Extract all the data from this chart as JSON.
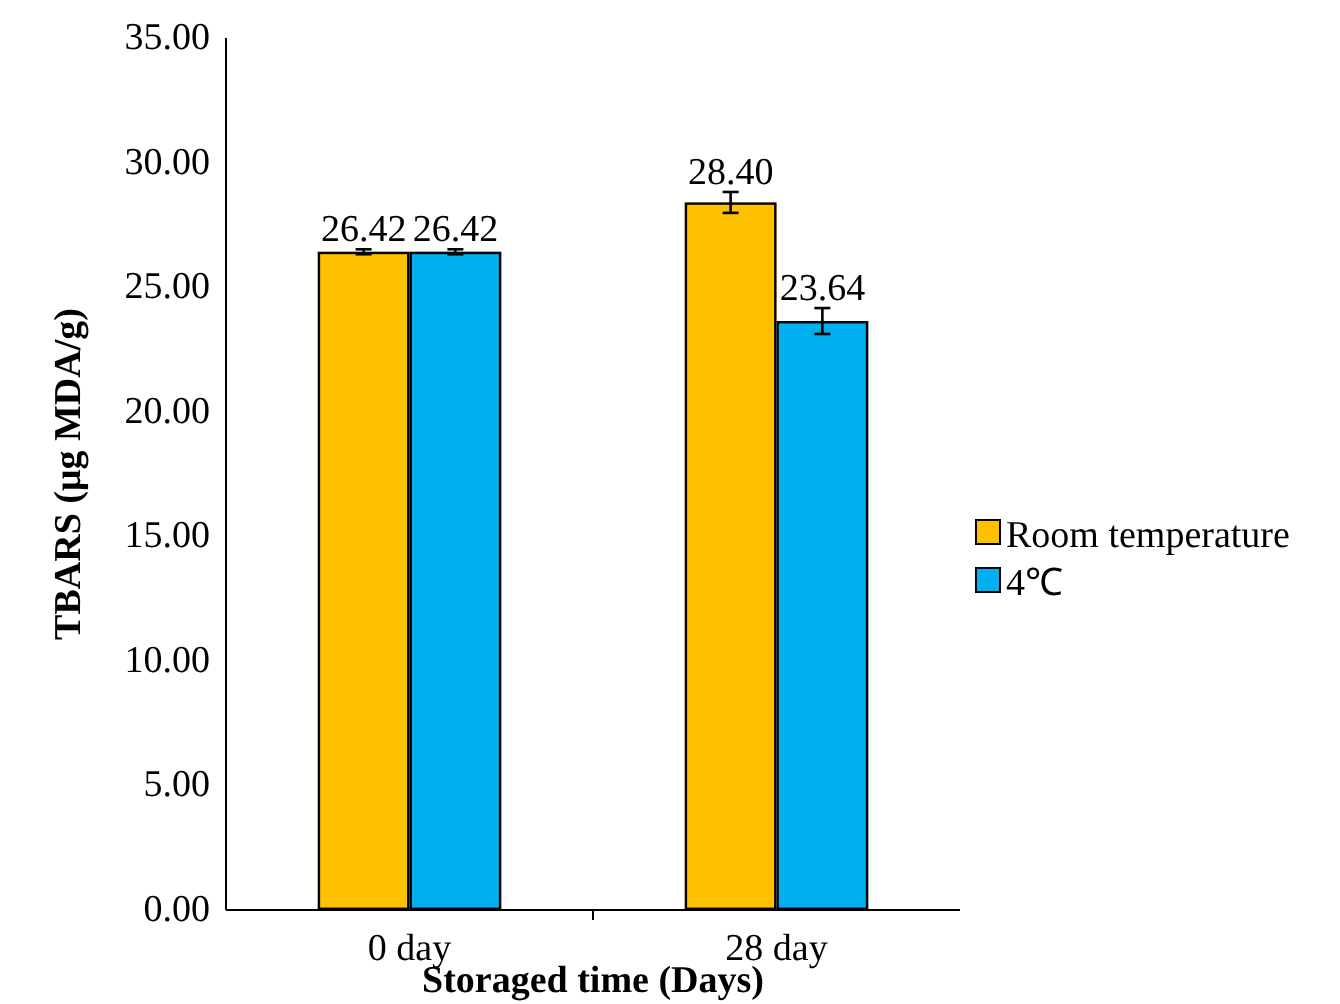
{
  "chart_data": {
    "type": "bar",
    "xlabel": "Storaged time (Days)",
    "ylabel": "TBARS (μg MDA/g)",
    "categories": [
      "0 day",
      "28 day"
    ],
    "series": [
      {
        "name": "Room temperature",
        "color": "#ffc000",
        "values": [
          26.42,
          28.4
        ],
        "errors": [
          0.1,
          0.42
        ],
        "value_labels": [
          "26.42",
          "28.40"
        ]
      },
      {
        "name": "4℃",
        "color": "#00b0f0",
        "values": [
          26.42,
          23.64
        ],
        "errors": [
          0.1,
          0.52
        ],
        "value_labels": [
          "26.42",
          "23.64"
        ]
      }
    ],
    "ylim": [
      0,
      35
    ],
    "yticks": [
      {
        "value": 0,
        "label": "0.00"
      },
      {
        "value": 5,
        "label": "5.00"
      },
      {
        "value": 10,
        "label": "10.00"
      },
      {
        "value": 15,
        "label": "15.00"
      },
      {
        "value": 20,
        "label": "20.00"
      },
      {
        "value": 25,
        "label": "25.00"
      },
      {
        "value": 30,
        "label": "30.00"
      },
      {
        "value": 35,
        "label": "35.00"
      }
    ],
    "legend": "right",
    "grid": false
  }
}
